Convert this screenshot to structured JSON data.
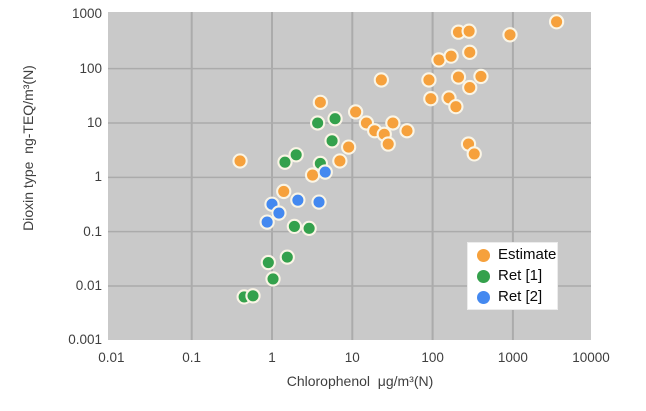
{
  "chart_data": {
    "type": "scatter",
    "title": "",
    "x_axis": {
      "label": "Chlorophenol  μg/m³(N)",
      "scale": "log",
      "min": 0.01,
      "max": 10000,
      "tick_values": [
        0.01,
        0.1,
        1,
        10,
        100,
        1000,
        10000
      ],
      "tick_labels": [
        "0.01",
        "0.1",
        "1",
        "10",
        "100",
        "1000",
        "10000"
      ]
    },
    "y_axis": {
      "label": "Dioxin type  ng-TEQ/m³(N)",
      "scale": "log",
      "min": 0.001,
      "max": 1000,
      "tick_values": [
        1000,
        100,
        10,
        1,
        0.1,
        0.01,
        0.001
      ],
      "tick_labels": [
        "1000",
        "100",
        "10",
        "1",
        "0.1",
        "0.01",
        "0.001"
      ]
    },
    "grid": true,
    "legend_position": "inside-bottom-right",
    "plot_bg": "#c9c9c9",
    "gridline_color": "#ababab",
    "marker_outline": "#faf5e6",
    "series": [
      {
        "name": "Estimate",
        "color": "#f6a13c",
        "points": [
          [
            0.4,
            2
          ],
          [
            1.4,
            0.55
          ],
          [
            3.2,
            1.1
          ],
          [
            4,
            24
          ],
          [
            7,
            2
          ],
          [
            9,
            3.6
          ],
          [
            11,
            16
          ],
          [
            15,
            10
          ],
          [
            19,
            7.2
          ],
          [
            23,
            62
          ],
          [
            25,
            6.2
          ],
          [
            28,
            4.1
          ],
          [
            32,
            10
          ],
          [
            48,
            7.2
          ],
          [
            90,
            62
          ],
          [
            95,
            28
          ],
          [
            120,
            145
          ],
          [
            160,
            29
          ],
          [
            170,
            170
          ],
          [
            195,
            20
          ],
          [
            210,
            70
          ],
          [
            210,
            470
          ],
          [
            280,
            4.1
          ],
          [
            285,
            490
          ],
          [
            290,
            45
          ],
          [
            290,
            200
          ],
          [
            330,
            2.7
          ],
          [
            400,
            72
          ],
          [
            920,
            420
          ],
          [
            3500,
            730
          ]
        ]
      },
      {
        "name": "Ret [1]",
        "color": "#34a14c",
        "points": [
          [
            0.45,
            0.0063
          ],
          [
            0.58,
            0.0066
          ],
          [
            0.9,
            0.027
          ],
          [
            1.03,
            0.0135
          ],
          [
            1.45,
            1.9
          ],
          [
            1.55,
            0.034
          ],
          [
            1.9,
            0.125
          ],
          [
            2,
            2.6
          ],
          [
            2.9,
            0.115
          ],
          [
            3.7,
            10
          ],
          [
            4,
            1.8
          ],
          [
            5.6,
            4.7
          ],
          [
            6.1,
            12
          ]
        ]
      },
      {
        "name": "Ret [2]",
        "color": "#4489f0",
        "points": [
          [
            0.87,
            0.15
          ],
          [
            1.0,
            0.32
          ],
          [
            1.22,
            0.22
          ],
          [
            2.1,
            0.38
          ],
          [
            3.85,
            0.35
          ],
          [
            4.6,
            1.25
          ]
        ]
      }
    ]
  }
}
